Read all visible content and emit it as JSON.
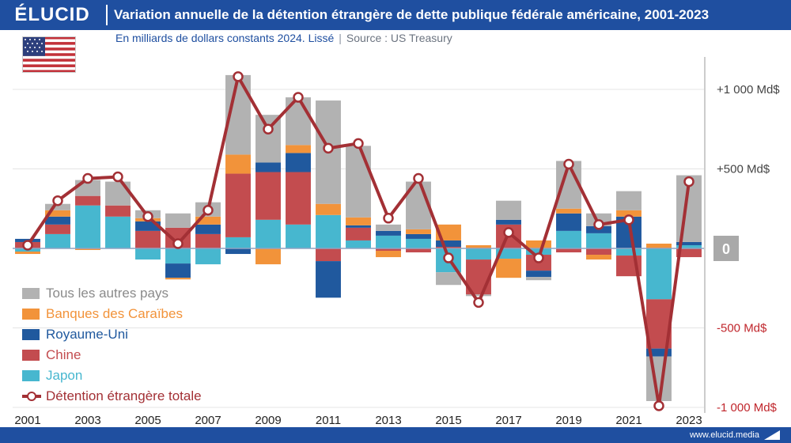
{
  "brand": {
    "logo": "ÉLUCID",
    "url": "www.elucid.media"
  },
  "header": {
    "title": "Variation annuelle de la détention étrangère de dette publique fédérale américaine, 2001-2023",
    "subtitle": "En milliards de dollars constants 2024. Lissé",
    "source": "Source : US Treasury"
  },
  "colors": {
    "autres": "#b2b2b2",
    "caraibes": "#f2933a",
    "royaume_uni": "#20599e",
    "chine": "#c34c4f",
    "japon": "#47b7cf",
    "total": "#a33035",
    "brand": "#1f4fa0"
  },
  "legend": [
    {
      "key": "autres",
      "label": "Tous les autres pays",
      "color": "#8a8a8a"
    },
    {
      "key": "caraibes",
      "label": "Banques des Caraïbes",
      "color": "#f2933a"
    },
    {
      "key": "royaume_uni",
      "label": "Royaume-Uni",
      "color": "#20599e"
    },
    {
      "key": "chine",
      "label": "Chine",
      "color": "#c34c4f"
    },
    {
      "key": "japon",
      "label": "Japon",
      "color": "#47b7cf"
    },
    {
      "key": "total",
      "label": "Détention étrangère totale",
      "color": "#a33035"
    }
  ],
  "chart_data": {
    "type": "bar",
    "stacked": true,
    "categories": [
      "2001",
      "2002",
      "2003",
      "2004",
      "2005",
      "2006",
      "2007",
      "2008",
      "2009",
      "2010",
      "2011",
      "2012",
      "2013",
      "2014",
      "2015",
      "2016",
      "2017",
      "2018",
      "2019",
      "2020",
      "2021",
      "2022",
      "2023"
    ],
    "x_tick_labels": [
      "2001",
      "2003",
      "2005",
      "2007",
      "2009",
      "2011",
      "2013",
      "2015",
      "2017",
      "2019",
      "2021",
      "2023"
    ],
    "series": [
      {
        "key": "japon",
        "name": "Japon",
        "values": [
          -20,
          90,
          270,
          200,
          -70,
          -95,
          -100,
          70,
          180,
          150,
          210,
          50,
          80,
          60,
          -150,
          -70,
          -65,
          -40,
          110,
          95,
          -45,
          -320,
          20
        ]
      },
      {
        "key": "chine",
        "name": "Chine",
        "values": [
          40,
          60,
          60,
          70,
          110,
          130,
          90,
          400,
          300,
          330,
          -80,
          80,
          -15,
          -25,
          10,
          -220,
          150,
          -100,
          -25,
          -40,
          -130,
          -310,
          -55
        ]
      },
      {
        "key": "royaume_uni",
        "name": "Royaume-Uni",
        "values": [
          20,
          50,
          0,
          0,
          60,
          -90,
          60,
          -35,
          60,
          120,
          -230,
          15,
          30,
          30,
          40,
          0,
          30,
          -40,
          110,
          45,
          200,
          -50,
          20
        ]
      },
      {
        "key": "caraibes",
        "name": "Banques des Caraïbes",
        "values": [
          -15,
          40,
          -10,
          0,
          20,
          -10,
          50,
          120,
          -100,
          50,
          70,
          50,
          -40,
          30,
          100,
          20,
          -120,
          50,
          30,
          -30,
          40,
          30,
          0
        ]
      },
      {
        "key": "autres",
        "name": "Tous les autres pays",
        "values": [
          0,
          40,
          100,
          150,
          50,
          90,
          90,
          500,
          300,
          300,
          650,
          450,
          40,
          300,
          -80,
          -10,
          120,
          -20,
          300,
          80,
          120,
          -280,
          420
        ]
      }
    ],
    "line": {
      "name": "Détention étrangère totale",
      "values": [
        20,
        300,
        440,
        450,
        200,
        30,
        240,
        1080,
        750,
        950,
        630,
        660,
        190,
        440,
        -60,
        -340,
        100,
        -60,
        530,
        150,
        180,
        -990,
        420
      ]
    },
    "y_ticks": [
      {
        "value": 1000,
        "label": "+1 000 Md$"
      },
      {
        "value": 500,
        "label": "+500 Md$"
      },
      {
        "value": 0,
        "label": "0"
      },
      {
        "value": -500,
        "label": "-500 Md$"
      },
      {
        "value": -1000,
        "label": "-1 000 Md$"
      }
    ],
    "ylim": [
      -1050,
      1150
    ],
    "xlabel": "",
    "ylabel": "Md$"
  }
}
